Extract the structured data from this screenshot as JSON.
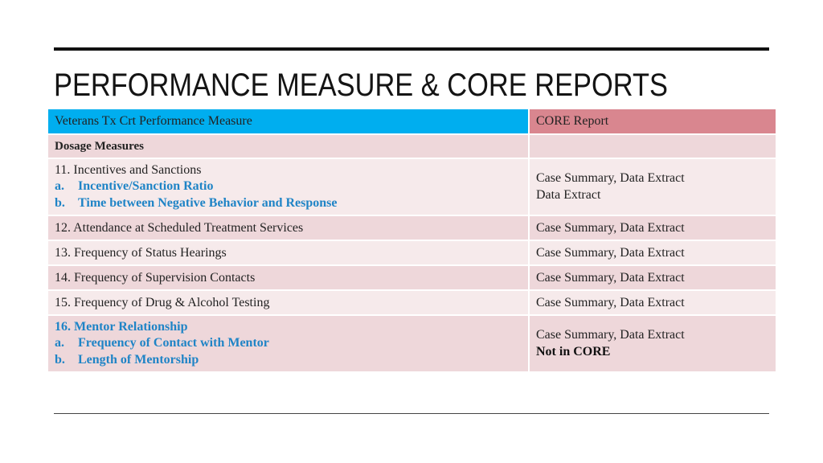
{
  "slide": {
    "title": "PERFORMANCE MEASURE & CORE REPORTS"
  },
  "table": {
    "headers": {
      "measure": "Veterans Tx Crt Performance Measure",
      "report": "CORE Report"
    },
    "section": "Dosage Measures",
    "row11": {
      "title": "11. Incentives and Sanctions",
      "sub_a_letter": "a.",
      "sub_a": "Incentive/Sanction Ratio",
      "sub_b_letter": "b.",
      "sub_b": "Time between Negative Behavior and Response",
      "report_a": "Case Summary, Data Extract",
      "report_b": "Data Extract"
    },
    "row12": {
      "measure": "12. Attendance at Scheduled Treatment Services",
      "report": "Case Summary, Data Extract"
    },
    "row13": {
      "measure": "13. Frequency of Status Hearings",
      "report": "Case Summary, Data Extract"
    },
    "row14": {
      "measure": "14. Frequency of Supervision Contacts",
      "report": "Case Summary, Data Extract"
    },
    "row15": {
      "measure": "15. Frequency of Drug & Alcohol Testing",
      "report": "Case Summary, Data Extract"
    },
    "row16": {
      "title": "16. Mentor Relationship",
      "sub_a_letter": "a.",
      "sub_a": "Frequency of Contact with Mentor",
      "sub_b_letter": "b.",
      "sub_b": "Length of Mentorship",
      "report_a": "Case Summary, Data Extract",
      "report_b": "Not in CORE"
    }
  },
  "colors": {
    "header_left": "#00aeef",
    "header_right": "#d9868f",
    "row_dark": "#eed7da",
    "row_light": "#f6eaeb",
    "sub_item_text": "#1f84c6"
  }
}
